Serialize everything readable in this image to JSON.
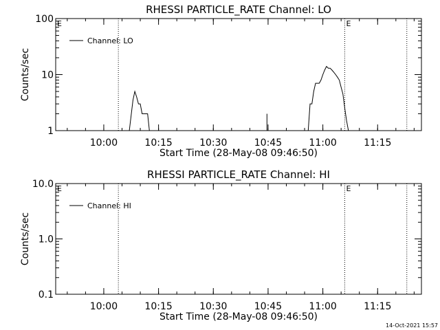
{
  "footer_timestamp": "14-Oct-2021 15:57",
  "chart_data": [
    {
      "type": "line",
      "title": "RHESSI PARTICLE_RATE Channel: LO",
      "xlabel": "Start Time (28-May-08 09:46:50)",
      "ylabel": "Counts/sec",
      "yscale": "log",
      "ylim": [
        1,
        100
      ],
      "xlim_minutes_after_start": [
        0,
        100.17
      ],
      "ytick_values": [
        1,
        10,
        100
      ],
      "ytick_labels": [
        "1",
        "10",
        "100"
      ],
      "xtick_labels": [
        "10:00",
        "10:15",
        "10:30",
        "10:45",
        "11:00",
        "11:15"
      ],
      "xtick_values": [
        13.17,
        28.17,
        43.17,
        58.17,
        73.17,
        88.17
      ],
      "minor_xtick_interval": 5,
      "legend": {
        "position": "top-left",
        "label": "Channel: LO"
      },
      "eclipse_marker": "E",
      "vertical_dotted_lines": [
        "10:04",
        "11:06",
        "11:23"
      ],
      "series": [
        {
          "name": "Channel: LO",
          "segments": [
            {
              "x": [
                "10:07",
                "10:08",
                "10:08.5",
                "10:09",
                "10:09.5",
                "10:10",
                "10:10.5",
                "10:11",
                "10:11.5",
                "10:12",
                "10:12.5"
              ],
              "y": [
                1,
                3.5,
                5,
                4,
                3,
                3,
                2,
                2,
                2,
                2,
                1
              ]
            },
            {
              "x": [
                "10:44.7",
                "10:44.7"
              ],
              "y": [
                1,
                2
              ]
            },
            {
              "x": [
                "10:56",
                "10:56.5",
                "10:57",
                "10:57.5",
                "10:58",
                "10:58.5",
                "10:59",
                "10:59.5",
                "11:00",
                "11:00.5",
                "11:01",
                "11:01.5",
                "11:02",
                "11:02.5",
                "11:03",
                "11:03.5",
                "11:04",
                "11:04.5",
                "11:05",
                "11:05.5",
                "11:06",
                "11:06.5",
                "11:07"
              ],
              "y": [
                1,
                3,
                3,
                5,
                7,
                7,
                7,
                8,
                10,
                12,
                14,
                13,
                13,
                12,
                11,
                10,
                9,
                8,
                6,
                4.5,
                2.5,
                1.5,
                1
              ]
            }
          ]
        }
      ]
    },
    {
      "type": "line",
      "title": "RHESSI PARTICLE_RATE Channel: HI",
      "xlabel": "Start Time (28-May-08 09:46:50)",
      "ylabel": "Counts/sec",
      "yscale": "log",
      "ylim": [
        0.1,
        10
      ],
      "xlim_minutes_after_start": [
        0,
        100.17
      ],
      "ytick_values": [
        0.1,
        1,
        10
      ],
      "ytick_labels": [
        "0.1",
        "1.0",
        "10.0"
      ],
      "xtick_labels": [
        "10:00",
        "10:15",
        "10:30",
        "10:45",
        "11:00",
        "11:15"
      ],
      "xtick_values": [
        13.17,
        28.17,
        43.17,
        58.17,
        73.17,
        88.17
      ],
      "minor_xtick_interval": 5,
      "legend": {
        "position": "top-left",
        "label": "Channel: HI"
      },
      "eclipse_marker": "E",
      "vertical_dotted_lines": [
        "10:04",
        "11:06",
        "11:23"
      ],
      "series": [
        {
          "name": "Channel: HI",
          "segments": []
        }
      ]
    }
  ]
}
